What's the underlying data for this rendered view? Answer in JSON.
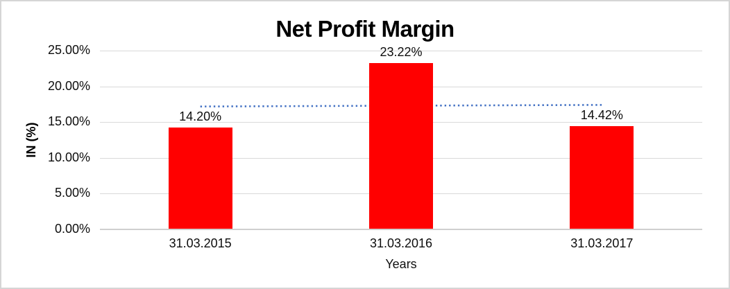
{
  "chart_data": {
    "type": "bar",
    "title": "Net Profit Margin",
    "xlabel": "Years",
    "ylabel": "IN (%)",
    "categories": [
      "31.03.2015",
      "31.03.2016",
      "31.03.2017"
    ],
    "values": [
      14.2,
      23.22,
      14.42
    ],
    "data_labels": [
      "14.20%",
      "23.22%",
      "14.42%"
    ],
    "yticks": [
      {
        "value": 0,
        "label": "0.00%"
      },
      {
        "value": 5,
        "label": "5.00%"
      },
      {
        "value": 10,
        "label": "10.00%"
      },
      {
        "value": 15,
        "label": "15.00%"
      },
      {
        "value": 20,
        "label": "20.00%"
      },
      {
        "value": 25,
        "label": "25.00%"
      }
    ],
    "ylim": [
      0,
      25
    ],
    "grid": "horizontal",
    "legend": "none",
    "bar_color": "#ff0000",
    "trendline": {
      "style": "dotted",
      "color": "#4472c4",
      "start_value": 17.17,
      "end_value": 17.39
    }
  }
}
